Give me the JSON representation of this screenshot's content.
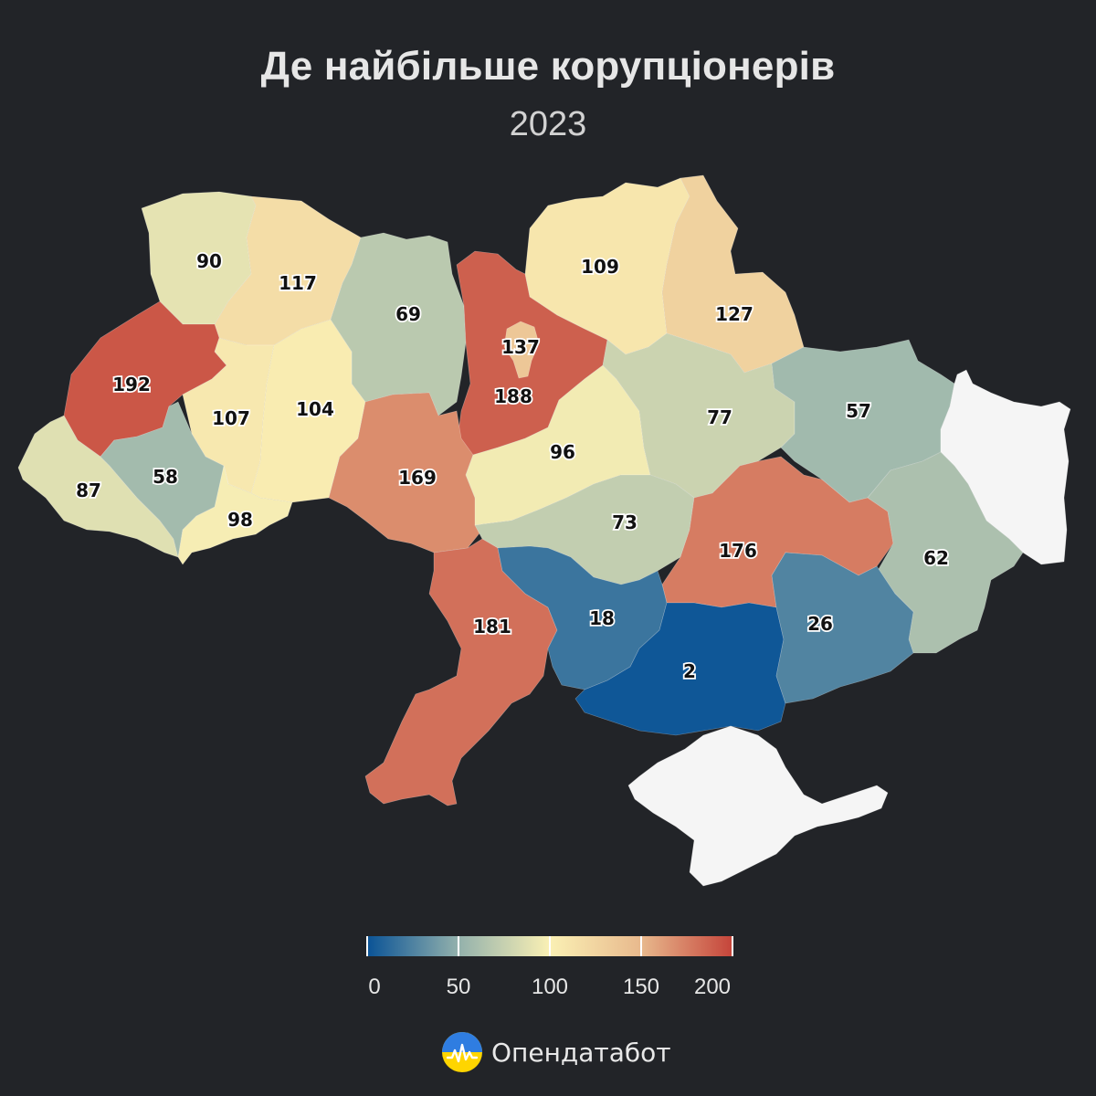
{
  "header": {
    "title": "Де найбільше корупціонерів",
    "subtitle": "2023"
  },
  "regions": [
    {
      "name": "volyn",
      "value": 90
    },
    {
      "name": "rivne",
      "value": 117
    },
    {
      "name": "zhytomyr",
      "value": 69
    },
    {
      "name": "kyiv-oblast",
      "value": 188
    },
    {
      "name": "kyiv-city",
      "value": 137
    },
    {
      "name": "chernihiv",
      "value": 109
    },
    {
      "name": "sumy",
      "value": 127
    },
    {
      "name": "lviv",
      "value": 192
    },
    {
      "name": "ternopil",
      "value": 107
    },
    {
      "name": "khmelnytskyi",
      "value": 104
    },
    {
      "name": "vinnytsia",
      "value": 169
    },
    {
      "name": "cherkasy",
      "value": 96
    },
    {
      "name": "poltava",
      "value": 77
    },
    {
      "name": "kharkiv",
      "value": 57
    },
    {
      "name": "luhansk",
      "value": null
    },
    {
      "name": "zakarpattia",
      "value": 87
    },
    {
      "name": "ivano-frankivsk",
      "value": 58
    },
    {
      "name": "chernivtsi",
      "value": 98
    },
    {
      "name": "kirovohrad",
      "value": 73
    },
    {
      "name": "dnipropetrovsk",
      "value": 176
    },
    {
      "name": "donetsk",
      "value": 62
    },
    {
      "name": "odesa",
      "value": 181
    },
    {
      "name": "mykolaiv",
      "value": 18
    },
    {
      "name": "kherson",
      "value": 2
    },
    {
      "name": "zaporizhzhia",
      "value": 26
    },
    {
      "name": "crimea",
      "value": null
    }
  ],
  "legend": {
    "min": 0,
    "max": 200,
    "ticks": [
      "0",
      "50",
      "100",
      "150",
      "200"
    ],
    "colors": [
      "#0a5396",
      "#93b1ac",
      "#faf0b4",
      "#e8b98d",
      "#c5443a"
    ],
    "no_data_color": "#f5f5f5"
  },
  "brand": {
    "name": "Опендатабот"
  }
}
